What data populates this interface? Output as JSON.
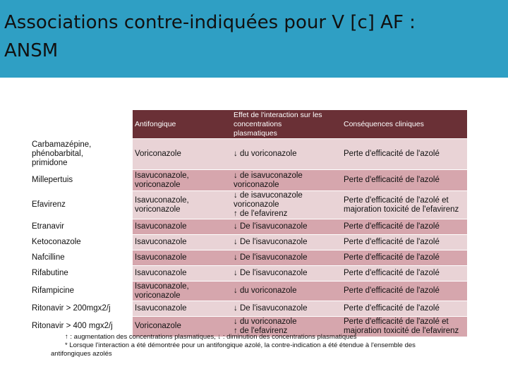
{
  "slide": {
    "title_line1": "Associations contre-indiquées pour V [c] AF :",
    "title_line2": "ANSM"
  },
  "table": {
    "headers": {
      "col1": "",
      "col2": "Antifongique",
      "col3_line1": "Effet de l'interaction sur les",
      "col3_line2": "concentrations",
      "col3_line3": "plasmatiques",
      "col4": "Conséquences cliniques"
    },
    "rows": [
      {
        "drug": [
          "Carbamazépine,",
          "phénobarbital,",
          "primidone"
        ],
        "antifongique": [
          "Voriconazole"
        ],
        "effet": [
          "↓ du voriconazole"
        ],
        "consequence": [
          "Perte d'efficacité de l'azolé"
        ],
        "shade": "light"
      },
      {
        "drug": [
          "Millepertuis"
        ],
        "antifongique": [
          "Isavuconazole,",
          "voriconazole"
        ],
        "effet": [
          "↓ de isavuconazole",
          "voriconazole"
        ],
        "consequence": [
          " Perte d'efficacité de l'azolé"
        ],
        "shade": "dark"
      },
      {
        "drug": [
          "Efavirenz"
        ],
        "antifongique": [
          "Isavuconazole,",
          "voriconazole"
        ],
        "effet": [
          "↓ de isavuconazole",
          "voriconazole",
          "↑ de l'efavirenz"
        ],
        "consequence": [
          "Perte d'efficacité de l'azolé et",
          "majoration toxicité de l'efavirenz"
        ],
        "shade": "light"
      },
      {
        "drug": [
          "Etranavir"
        ],
        "antifongique": [
          "Isavuconazole"
        ],
        "effet": [
          "↓ De l'isavuconazole"
        ],
        "consequence": [
          "Perte d'efficacité de l'azolé"
        ],
        "shade": "dark"
      },
      {
        "drug": [
          "Ketoconazole"
        ],
        "antifongique": [
          "Isavuconazole"
        ],
        "effet": [
          "↓ De l'isavuconazole"
        ],
        "consequence": [
          "Perte d'efficacité de l'azolé"
        ],
        "shade": "light"
      },
      {
        "drug": [
          "Nafcilline"
        ],
        "antifongique": [
          "Isavuconazole"
        ],
        "effet": [
          "↓ De l'isavuconazole"
        ],
        "consequence": [
          "Perte d'efficacité de l'azolé"
        ],
        "shade": "dark"
      },
      {
        "drug": [
          "Rifabutine"
        ],
        "antifongique": [
          "Isavuconazole"
        ],
        "effet": [
          "↓ De l'isavuconazole"
        ],
        "consequence": [
          "Perte d'efficacité de l'azolé"
        ],
        "shade": "light"
      },
      {
        "drug": [
          "Rifampicine"
        ],
        "antifongique": [
          "Isavuconazole,",
          "voriconazole"
        ],
        "effet": [
          "↓ du voriconazole"
        ],
        "consequence": [
          " Perte d'efficacité de l'azolé"
        ],
        "shade": "dark"
      },
      {
        "drug": [
          "Ritonavir > 200mgx2/j"
        ],
        "antifongique": [
          "Isavuconazole"
        ],
        "effet": [
          "↓ De l'isavuconazole"
        ],
        "consequence": [
          "Perte d'efficacité de l'azolé"
        ],
        "shade": "light"
      },
      {
        "drug": [
          "Ritonavir > 400 mgx2/j"
        ],
        "antifongique": [
          "Voriconazole"
        ],
        "effet": [
          "↓ du voriconazole",
          "↑ de l'efavirenz"
        ],
        "consequence": [
          "Perte d'efficacité de l'azolé et",
          "majoration toxicité de l'efavirenz"
        ],
        "shade": "dark"
      }
    ]
  },
  "footnotes": {
    "line1": "↑ : augmentation des concentrations plasmatiques, ↓ : diminution des concentrations plasmatiques",
    "line2": "* Lorsque l'interaction a été démontrée pour un antifongique azolé, la contre-indication a été étendue à l'ensemble des",
    "line3": "antifongiques azolés"
  },
  "colors": {
    "header_band": "#2f9fc4",
    "table_header": "#6a3036",
    "row_light": "#e9d3d6",
    "row_dark": "#d6a6ad"
  }
}
